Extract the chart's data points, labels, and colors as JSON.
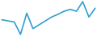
{
  "values": [
    6.8,
    6.5,
    6.2,
    3.0,
    8.5,
    4.5,
    5.5,
    6.5,
    7.5,
    8.2,
    9.0,
    9.5,
    9.0,
    11.5,
    7.5,
    9.8
  ],
  "line_color": "#2E9FD0",
  "background_color": "#ffffff",
  "linewidth": 1.2
}
